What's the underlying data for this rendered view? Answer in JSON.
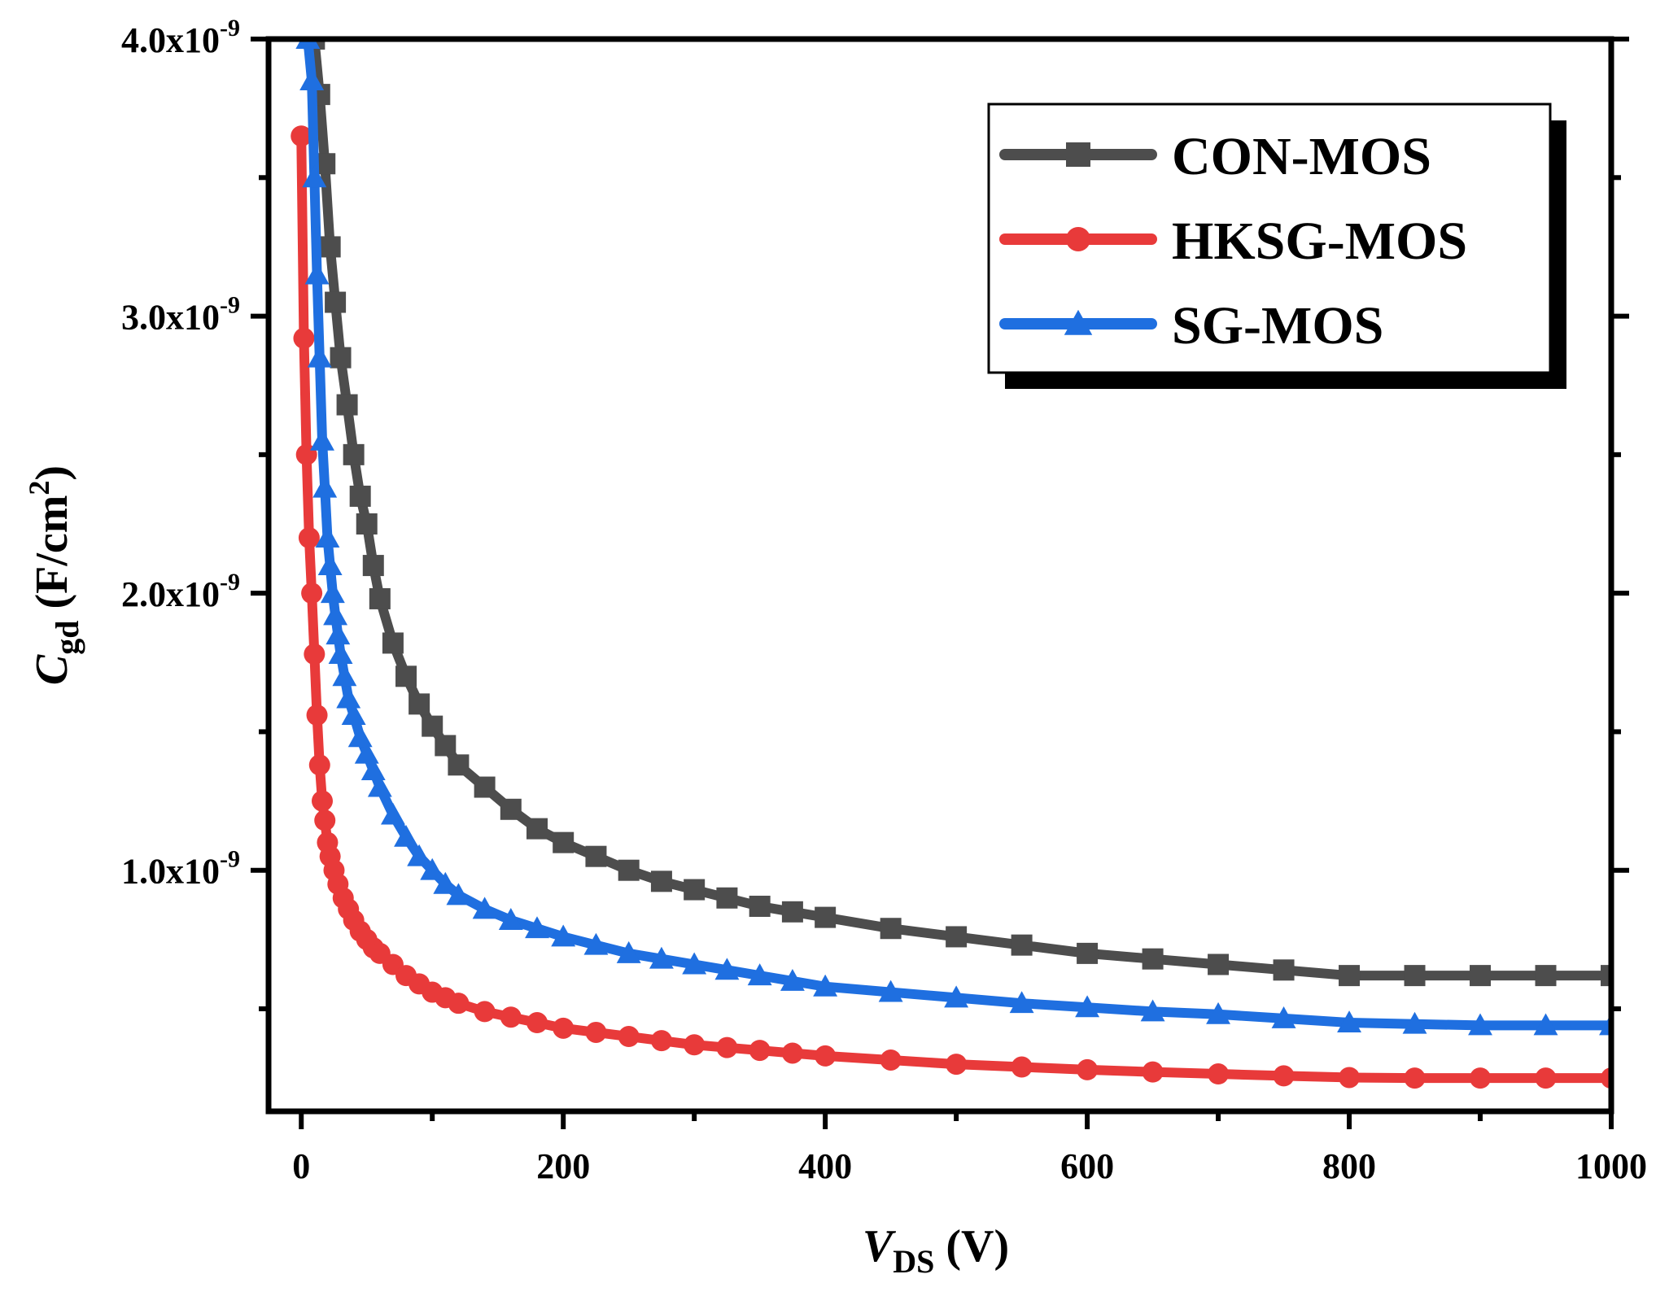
{
  "chart_data": {
    "type": "line",
    "xlabel": {
      "main": "V",
      "sub": "DS",
      "unit": " (V)"
    },
    "ylabel": {
      "main": "C",
      "sub": "gd",
      "unit_pre": " (F/cm",
      "unit_sup": "2",
      "unit_post": ")"
    },
    "xlim": [
      -25,
      1000
    ],
    "ylim": [
      1.3e-10,
      4e-09
    ],
    "x_ticks": [
      {
        "value": 0,
        "label": "0"
      },
      {
        "value": 200,
        "label": "200"
      },
      {
        "value": 400,
        "label": "400"
      },
      {
        "value": 600,
        "label": "600"
      },
      {
        "value": 800,
        "label": "800"
      },
      {
        "value": 1000,
        "label": "1000"
      }
    ],
    "y_ticks": [
      {
        "value": 1e-09,
        "mant": "1.0x10",
        "exp": "-9"
      },
      {
        "value": 2e-09,
        "mant": "2.0x10",
        "exp": "-9"
      },
      {
        "value": 3e-09,
        "mant": "3.0x10",
        "exp": "-9"
      },
      {
        "value": 4e-09,
        "mant": "4.0x10",
        "exp": "-9"
      }
    ],
    "y_minor_ticks": [
      5e-10,
      1.5e-09,
      2.5e-09,
      3.5e-09
    ],
    "x_minor_ticks": [
      100,
      300,
      500,
      700,
      900
    ],
    "grid": false,
    "legend_position": "top-right",
    "series": [
      {
        "name": "CON-MOS",
        "color": "#4d4d4d",
        "marker": "square",
        "x": [
          10,
          14,
          18,
          22,
          26,
          30,
          35,
          40,
          45,
          50,
          55,
          60,
          70,
          80,
          90,
          100,
          110,
          120,
          140,
          160,
          180,
          200,
          225,
          250,
          275,
          300,
          325,
          350,
          375,
          400,
          450,
          500,
          550,
          600,
          650,
          700,
          750,
          800,
          850,
          900,
          950,
          1000
        ],
        "y": [
          4e-09,
          3.8e-09,
          3.55e-09,
          3.25e-09,
          3.05e-09,
          2.85e-09,
          2.68e-09,
          2.5e-09,
          2.35e-09,
          2.25e-09,
          2.1e-09,
          1.98e-09,
          1.82e-09,
          1.7e-09,
          1.6e-09,
          1.52e-09,
          1.45e-09,
          1.38e-09,
          1.3e-09,
          1.22e-09,
          1.15e-09,
          1.1e-09,
          1.05e-09,
          1e-09,
          9.6e-10,
          9.3e-10,
          9e-10,
          8.7e-10,
          8.5e-10,
          8.3e-10,
          7.9e-10,
          7.6e-10,
          7.3e-10,
          7e-10,
          6.8e-10,
          6.6e-10,
          6.4e-10,
          6.2e-10,
          6.2e-10,
          6.2e-10,
          6.2e-10,
          6.2e-10
        ]
      },
      {
        "name": "HKSG-MOS",
        "color": "#e83a3a",
        "marker": "circle",
        "x": [
          0,
          2,
          4,
          6,
          8,
          10,
          12,
          14,
          16,
          18,
          20,
          22,
          25,
          28,
          32,
          36,
          40,
          45,
          50,
          55,
          60,
          70,
          80,
          90,
          100,
          110,
          120,
          140,
          160,
          180,
          200,
          225,
          250,
          275,
          300,
          325,
          350,
          375,
          400,
          450,
          500,
          550,
          600,
          650,
          700,
          750,
          800,
          850,
          900,
          950,
          1000
        ],
        "y": [
          3.65e-09,
          2.92e-09,
          2.5e-09,
          2.2e-09,
          2e-09,
          1.78e-09,
          1.56e-09,
          1.38e-09,
          1.25e-09,
          1.18e-09,
          1.1e-09,
          1.05e-09,
          1e-09,
          9.5e-10,
          9e-10,
          8.6e-10,
          8.2e-10,
          7.8e-10,
          7.5e-10,
          7.2e-10,
          7e-10,
          6.6e-10,
          6.2e-10,
          5.9e-10,
          5.6e-10,
          5.4e-10,
          5.2e-10,
          4.9e-10,
          4.7e-10,
          4.5e-10,
          4.3e-10,
          4.15e-10,
          4e-10,
          3.85e-10,
          3.7e-10,
          3.6e-10,
          3.5e-10,
          3.4e-10,
          3.3e-10,
          3.15e-10,
          3e-10,
          2.9e-10,
          2.8e-10,
          2.72e-10,
          2.65e-10,
          2.58e-10,
          2.52e-10,
          2.5e-10,
          2.5e-10,
          2.5e-10,
          2.5e-10
        ]
      },
      {
        "name": "SG-MOS",
        "color": "#1f6fe0",
        "marker": "triangle",
        "x": [
          5,
          8,
          10,
          12,
          14,
          16,
          18,
          20,
          22,
          24,
          26,
          28,
          30,
          33,
          36,
          40,
          45,
          50,
          55,
          60,
          70,
          80,
          90,
          100,
          110,
          120,
          140,
          160,
          180,
          200,
          225,
          250,
          275,
          300,
          325,
          350,
          375,
          400,
          450,
          500,
          550,
          600,
          650,
          700,
          750,
          800,
          850,
          900,
          950,
          1000
        ],
        "y": [
          4e-09,
          3.85e-09,
          3.5e-09,
          3.15e-09,
          2.85e-09,
          2.55e-09,
          2.38e-09,
          2.2e-09,
          2.1e-09,
          2e-09,
          1.92e-09,
          1.85e-09,
          1.78e-09,
          1.7e-09,
          1.62e-09,
          1.56e-09,
          1.48e-09,
          1.42e-09,
          1.36e-09,
          1.3e-09,
          1.2e-09,
          1.12e-09,
          1.05e-09,
          1e-09,
          9.5e-10,
          9.1e-10,
          8.6e-10,
          8.2e-10,
          7.9e-10,
          7.6e-10,
          7.3e-10,
          7e-10,
          6.8e-10,
          6.6e-10,
          6.4e-10,
          6.2e-10,
          6e-10,
          5.8e-10,
          5.6e-10,
          5.4e-10,
          5.2e-10,
          5.05e-10,
          4.9e-10,
          4.8e-10,
          4.65e-10,
          4.5e-10,
          4.45e-10,
          4.4e-10,
          4.4e-10,
          4.4e-10
        ]
      }
    ]
  }
}
